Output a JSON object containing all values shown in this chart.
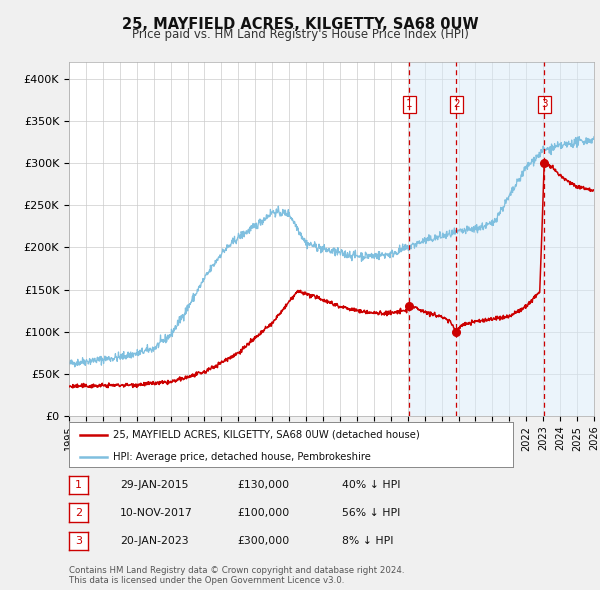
{
  "title": "25, MAYFIELD ACRES, KILGETTY, SA68 0UW",
  "subtitle": "Price paid vs. HM Land Registry's House Price Index (HPI)",
  "xlim_start": 1995.0,
  "xlim_end": 2026.0,
  "ylim": [
    0,
    420000
  ],
  "yticks": [
    0,
    50000,
    100000,
    150000,
    200000,
    250000,
    300000,
    350000,
    400000
  ],
  "ytick_labels": [
    "£0",
    "£50K",
    "£100K",
    "£150K",
    "£200K",
    "£250K",
    "£300K",
    "£350K",
    "£400K"
  ],
  "background_color": "#f0f0f0",
  "plot_bg_color": "#ffffff",
  "grid_color": "#cccccc",
  "hpi_color": "#7fbfdf",
  "price_color": "#cc0000",
  "transaction_color": "#cc0000",
  "shade_color": "#d8eaf8",
  "sales": [
    {
      "date_num": 2015.08,
      "price": 130000,
      "label": "1"
    },
    {
      "date_num": 2017.87,
      "price": 100000,
      "label": "2"
    },
    {
      "date_num": 2023.06,
      "price": 300000,
      "label": "3"
    }
  ],
  "legend_entries": [
    "25, MAYFIELD ACRES, KILGETTY, SA68 0UW (detached house)",
    "HPI: Average price, detached house, Pembrokeshire"
  ],
  "table_data": [
    {
      "num": "1",
      "date": "29-JAN-2015",
      "price": "£130,000",
      "hpi": "40% ↓ HPI"
    },
    {
      "num": "2",
      "date": "10-NOV-2017",
      "price": "£100,000",
      "hpi": "56% ↓ HPI"
    },
    {
      "num": "3",
      "date": "20-JAN-2023",
      "price": "£300,000",
      "hpi": "8% ↓ HPI"
    }
  ],
  "footer": "Contains HM Land Registry data © Crown copyright and database right 2024.\nThis data is licensed under the Open Government Licence v3.0.",
  "hpi_anchors_t": [
    1995.0,
    1996.0,
    1997.0,
    1998.0,
    1999.0,
    2000.0,
    2001.0,
    2002.0,
    2003.0,
    2004.0,
    2005.0,
    2006.0,
    2007.0,
    2008.0,
    2009.0,
    2010.0,
    2011.0,
    2012.0,
    2013.0,
    2014.0,
    2015.0,
    2016.0,
    2017.0,
    2018.0,
    2019.0,
    2020.0,
    2021.0,
    2022.0,
    2023.0,
    2024.0,
    2025.0,
    2026.0
  ],
  "hpi_anchors_v": [
    62000,
    65000,
    67000,
    70000,
    74000,
    80000,
    96000,
    128000,
    163000,
    193000,
    212000,
    225000,
    242000,
    240000,
    205000,
    198000,
    193000,
    190000,
    190000,
    192000,
    200000,
    208000,
    213000,
    218000,
    222000,
    228000,
    260000,
    295000,
    315000,
    320000,
    325000,
    328000
  ],
  "price_anchors_t": [
    1995.0,
    1997.0,
    1999.0,
    2001.0,
    2003.0,
    2005.0,
    2007.0,
    2008.5,
    2010.0,
    2011.0,
    2012.0,
    2013.0,
    2014.0,
    2014.9,
    2015.08,
    2015.5,
    2016.0,
    2016.5,
    2017.0,
    2017.5,
    2017.87,
    2018.2,
    2019.0,
    2020.0,
    2021.0,
    2022.0,
    2022.8,
    2023.06,
    2023.5,
    2024.0,
    2024.5,
    2025.0,
    2026.0
  ],
  "price_anchors_v": [
    35000,
    36000,
    37000,
    40000,
    52000,
    75000,
    110000,
    148000,
    138000,
    130000,
    125000,
    122000,
    122000,
    125000,
    130000,
    128000,
    124000,
    120000,
    118000,
    112000,
    100000,
    108000,
    112000,
    115000,
    118000,
    130000,
    148000,
    300000,
    295000,
    285000,
    278000,
    272000,
    268000
  ]
}
